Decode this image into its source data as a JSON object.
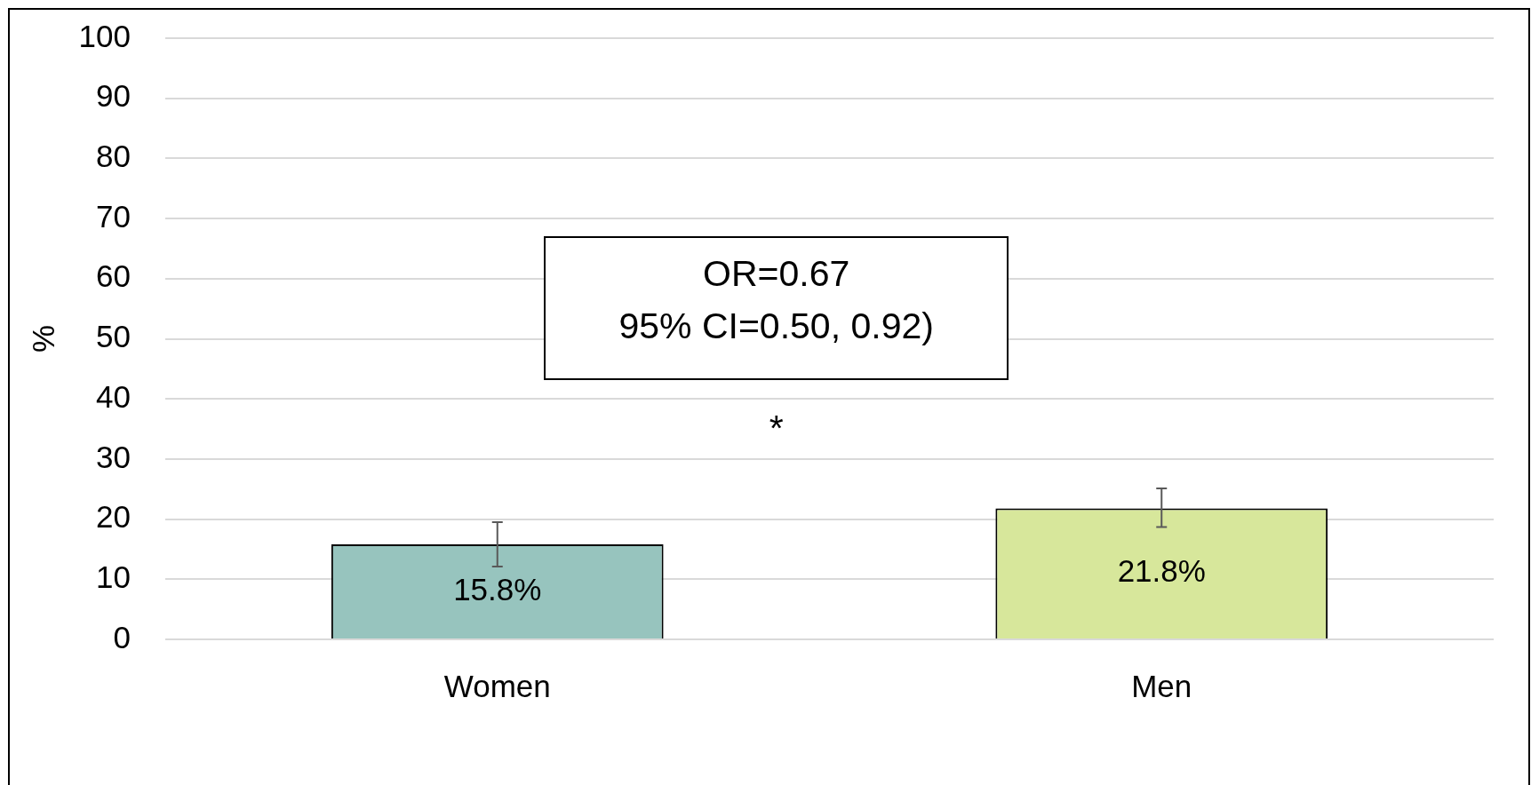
{
  "chart_data": {
    "type": "bar",
    "ylabel": "%",
    "categories": [
      "Women",
      "Men"
    ],
    "values": [
      15.8,
      21.8
    ],
    "colors": [
      "#97c4be",
      "#d7e79b"
    ],
    "errors": [
      [
        12.1,
        19.5
      ],
      [
        18.7,
        25.1
      ]
    ],
    "value_labels": [
      "15.8%",
      "21.8%"
    ],
    "ylim": [
      0,
      100
    ],
    "yticks": [
      0,
      10,
      20,
      30,
      40,
      50,
      60,
      70,
      80,
      90,
      100
    ],
    "grid": "y",
    "annotations": [
      "OR=0.67\n95% CI=0.50, 0.92)",
      "*"
    ]
  }
}
